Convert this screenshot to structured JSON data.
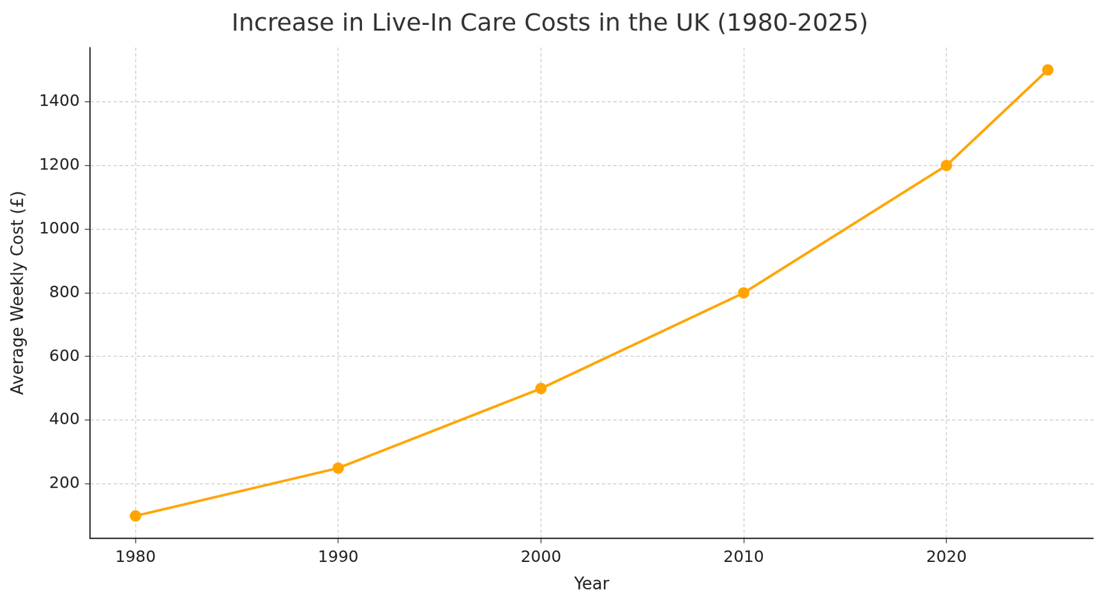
{
  "chart_data": {
    "type": "line",
    "title": "Increase in Live-In Care Costs in the UK (1980-2025)",
    "x_label": "Year",
    "y_label": "Average Weekly Cost (£)",
    "x": [
      1980,
      1990,
      2000,
      2010,
      2020,
      2025
    ],
    "values": [
      100,
      250,
      500,
      800,
      1200,
      1500
    ],
    "color": "#ffa500",
    "marker": "circle",
    "line_style": "solid",
    "xlim": [
      1977.75,
      2027.25
    ],
    "xticks": [
      1980,
      1990,
      2000,
      2010,
      2020
    ],
    "ylim": [
      30,
      1570
    ],
    "yticks": [
      200,
      400,
      600,
      800,
      1000,
      1200,
      1400
    ],
    "grid": true
  }
}
